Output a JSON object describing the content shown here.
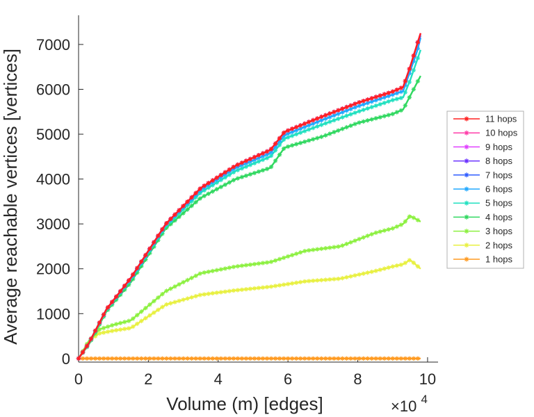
{
  "chart_data": {
    "type": "line",
    "title": "",
    "xlabel": "Volume (m) [edges]",
    "ylabel": "Average reachable vertices [vertices]",
    "x_multiplier_label": "×10",
    "x_multiplier_exp": "4",
    "xlim": [
      0,
      10.3
    ],
    "ylim": [
      -80,
      7650
    ],
    "xticks": [
      0,
      2,
      4,
      6,
      8,
      10
    ],
    "xtick_labels": [
      "0",
      "2",
      "4",
      "6",
      "8",
      "10"
    ],
    "yticks": [
      0,
      1000,
      2000,
      3000,
      4000,
      5000,
      6000,
      7000
    ],
    "ytick_labels": [
      "0",
      "1000",
      "2000",
      "3000",
      "4000",
      "5000",
      "6000",
      "7000"
    ],
    "grid": false,
    "legend_position": "right",
    "marker": "asterisk",
    "x_unit_note": "x values in units of 10^4 edges",
    "series": [
      {
        "name": "11 hops",
        "color": "#ff2020",
        "x": [
          0,
          0.3,
          0.8,
          1.5,
          2.5,
          3.5,
          4.5,
          5.5,
          5.9,
          7,
          8,
          9,
          9.3,
          9.5,
          9.7,
          9.8
        ],
        "values": [
          0,
          350,
          1100,
          1800,
          3000,
          3800,
          4300,
          4650,
          5050,
          5400,
          5700,
          5950,
          6050,
          6500,
          7000,
          7250
        ]
      },
      {
        "name": "10 hops",
        "color": "#ff3ca8",
        "x": [
          0,
          0.3,
          0.8,
          1.5,
          2.5,
          3.5,
          4.5,
          5.5,
          5.9,
          7,
          8,
          9,
          9.3,
          9.5,
          9.7,
          9.8
        ],
        "values": [
          0,
          350,
          1100,
          1800,
          3000,
          3800,
          4300,
          4650,
          5050,
          5400,
          5700,
          5950,
          6050,
          6500,
          7000,
          7250
        ]
      },
      {
        "name": "9 hops",
        "color": "#e040ff",
        "x": [
          0,
          0.3,
          0.8,
          1.5,
          2.5,
          3.5,
          4.5,
          5.5,
          5.9,
          7,
          8,
          9,
          9.3,
          9.5,
          9.7,
          9.8
        ],
        "values": [
          0,
          350,
          1100,
          1800,
          3000,
          3800,
          4300,
          4650,
          5050,
          5400,
          5700,
          5950,
          6050,
          6500,
          7000,
          7250
        ]
      },
      {
        "name": "8 hops",
        "color": "#6a30ff",
        "x": [
          0,
          0.3,
          0.8,
          1.5,
          2.5,
          3.5,
          4.5,
          5.5,
          5.9,
          7,
          8,
          9,
          9.3,
          9.5,
          9.7,
          9.8
        ],
        "values": [
          0,
          350,
          1100,
          1800,
          3000,
          3800,
          4300,
          4650,
          5050,
          5400,
          5700,
          5950,
          6050,
          6500,
          7000,
          7250
        ]
      },
      {
        "name": "7 hops",
        "color": "#2f5cff",
        "x": [
          0,
          0.3,
          0.8,
          1.5,
          2.5,
          3.5,
          4.5,
          5.5,
          5.9,
          7,
          8,
          9,
          9.3,
          9.5,
          9.7,
          9.8
        ],
        "values": [
          0,
          350,
          1100,
          1800,
          3000,
          3800,
          4300,
          4650,
          5050,
          5400,
          5700,
          5950,
          6050,
          6500,
          7000,
          7200
        ]
      },
      {
        "name": "6 hops",
        "color": "#20a8ff",
        "x": [
          0,
          0.3,
          0.8,
          1.5,
          2.5,
          3.5,
          4.5,
          5.5,
          5.9,
          7,
          8,
          9,
          9.3,
          9.5,
          9.7,
          9.8
        ],
        "values": [
          0,
          350,
          1100,
          1780,
          2980,
          3760,
          4250,
          4580,
          4980,
          5320,
          5620,
          5880,
          5960,
          6400,
          6850,
          7150
        ]
      },
      {
        "name": "5 hops",
        "color": "#20e0c0",
        "x": [
          0,
          0.3,
          0.8,
          1.5,
          2.5,
          3.5,
          4.5,
          5.5,
          5.9,
          7,
          8,
          9,
          9.3,
          9.5,
          9.7,
          9.8
        ],
        "values": [
          0,
          340,
          1080,
          1760,
          2950,
          3700,
          4180,
          4500,
          4900,
          5220,
          5500,
          5760,
          5820,
          6200,
          6650,
          6880
        ]
      },
      {
        "name": "4 hops",
        "color": "#30d860",
        "x": [
          0,
          0.3,
          0.8,
          1.5,
          2.5,
          3.5,
          4.5,
          5.5,
          5.9,
          7,
          8,
          9,
          9.3,
          9.5,
          9.7,
          9.8
        ],
        "values": [
          0,
          320,
          1050,
          1700,
          2900,
          3580,
          4000,
          4250,
          4700,
          4950,
          5250,
          5450,
          5550,
          5850,
          6150,
          6300
        ]
      },
      {
        "name": "3 hops",
        "color": "#8cf040",
        "x": [
          0,
          0.3,
          0.6,
          1.0,
          1.5,
          2.5,
          3.5,
          4.5,
          5.5,
          6.5,
          7.5,
          8.5,
          9.0,
          9.3,
          9.5,
          9.8
        ],
        "values": [
          0,
          400,
          650,
          750,
          850,
          1500,
          1900,
          2050,
          2150,
          2400,
          2500,
          2800,
          2900,
          3000,
          3180,
          3050
        ]
      },
      {
        "name": "2 hops",
        "color": "#e8f040",
        "x": [
          0,
          0.3,
          0.6,
          1.0,
          1.5,
          2.5,
          3.5,
          4.5,
          5.5,
          6.5,
          7.5,
          8.5,
          9.0,
          9.3,
          9.5,
          9.8
        ],
        "values": [
          0,
          400,
          560,
          620,
          680,
          1200,
          1420,
          1520,
          1600,
          1720,
          1780,
          1950,
          2050,
          2100,
          2200,
          2000
        ]
      },
      {
        "name": "1 hops",
        "color": "#ff9a20",
        "x": [
          0,
          1,
          2,
          3,
          4,
          5,
          6,
          7,
          8,
          9,
          9.8
        ],
        "values": [
          0,
          0,
          0,
          0,
          0,
          0,
          0,
          0,
          0,
          0,
          0
        ]
      }
    ]
  }
}
